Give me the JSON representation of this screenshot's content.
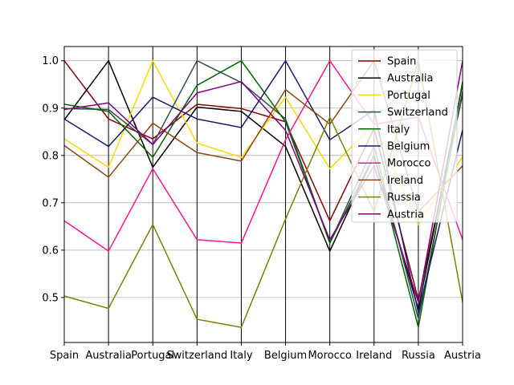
{
  "chart_data": {
    "type": "line",
    "title": "",
    "xlabel": "",
    "ylabel": "",
    "ylim": [
      0.405,
      1.03
    ],
    "grid": "horizontal",
    "legend_position": "upper right",
    "categories": [
      "Spain",
      "Australia",
      "Portugal",
      "Switzerland",
      "Italy",
      "Belgium",
      "Morocco",
      "Ireland",
      "Russia",
      "Austria"
    ],
    "y_ticks": [
      "0.5",
      "0.6",
      "0.7",
      "0.8",
      "0.9",
      "1.0"
    ],
    "y_tick_values": [
      0.5,
      0.6,
      0.7,
      0.8,
      0.9,
      1.0
    ],
    "series": [
      {
        "name": "Spain",
        "color": "#8b0000",
        "values": [
          1.0,
          0.877,
          0.835,
          0.908,
          0.899,
          0.871,
          0.662,
          0.857,
          0.495,
          0.929
        ]
      },
      {
        "name": "Australia",
        "color": "#000000",
        "values": [
          0.875,
          1.0,
          0.775,
          0.902,
          0.893,
          0.819,
          0.598,
          0.8,
          0.475,
          0.952
        ]
      },
      {
        "name": "Portugal",
        "color": "#ffd700",
        "values": [
          0.835,
          0.775,
          1.0,
          0.826,
          0.796,
          0.923,
          0.772,
          0.866,
          0.654,
          0.797
        ]
      },
      {
        "name": "Switzerland",
        "color": "#2f4f4f",
        "values": [
          0.899,
          0.897,
          0.823,
          1.0,
          0.954,
          0.877,
          0.615,
          0.82,
          0.455,
          0.935
        ]
      },
      {
        "name": "Italy",
        "color": "#006400",
        "values": [
          0.908,
          0.893,
          0.796,
          0.948,
          1.0,
          0.871,
          0.615,
          0.8,
          0.437,
          0.956
        ]
      },
      {
        "name": "Belgium",
        "color": "#191970",
        "values": [
          0.877,
          0.819,
          0.923,
          0.877,
          0.859,
          1.0,
          0.833,
          0.896,
          0.468,
          0.854
        ]
      },
      {
        "name": "Morocco",
        "color": "#ff1493",
        "values": [
          0.662,
          0.598,
          0.772,
          0.622,
          0.615,
          0.833,
          1.0,
          0.866,
          0.881,
          0.622
        ]
      },
      {
        "name": "Ireland",
        "color": "#8b4513",
        "values": [
          0.821,
          0.754,
          0.868,
          0.806,
          0.788,
          0.939,
          0.866,
          1.0,
          0.681,
          0.778
        ]
      },
      {
        "name": "Russia",
        "color": "#808000",
        "values": [
          0.503,
          0.477,
          0.654,
          0.454,
          0.437,
          0.666,
          0.881,
          0.681,
          1.0,
          0.49
        ]
      },
      {
        "name": "Austria",
        "color": "#800080",
        "values": [
          0.897,
          0.911,
          0.823,
          0.932,
          0.956,
          0.853,
          0.622,
          0.778,
          0.49,
          1.0
        ]
      }
    ]
  }
}
